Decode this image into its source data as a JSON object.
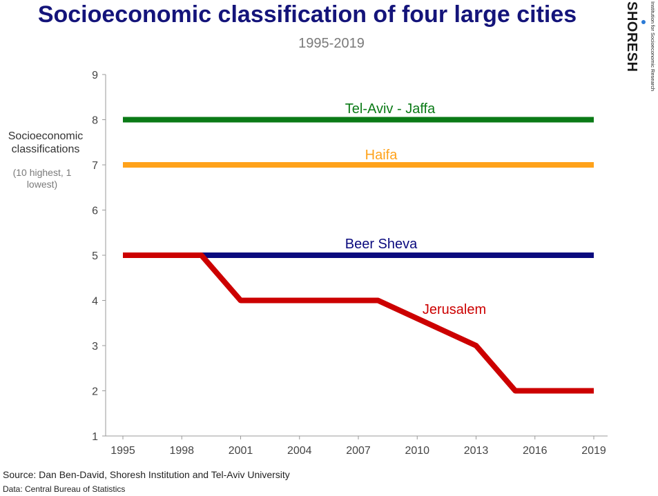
{
  "chart_data": {
    "type": "line",
    "title": "Socioeconomic classification of four large cities",
    "subtitle": "1995-2019",
    "ylabel": "Socioeconomic classifications",
    "ylabel_note": "(10 highest, 1 lowest)",
    "xlabel": "",
    "xlim": [
      1995,
      2019
    ],
    "ylim": [
      1,
      9
    ],
    "x_ticks": [
      1995,
      1998,
      2001,
      2004,
      2007,
      2010,
      2013,
      2016,
      2019
    ],
    "y_ticks": [
      1,
      2,
      3,
      4,
      5,
      6,
      7,
      8,
      9
    ],
    "grid": false,
    "legend": "none (direct labels)",
    "series": [
      {
        "name": "Tel-Aviv - Jaffa",
        "color": "#0a7a16",
        "x": [
          1995,
          2019
        ],
        "y": [
          8,
          8
        ]
      },
      {
        "name": "Haifa",
        "color": "#ffa21a",
        "x": [
          1995,
          2019
        ],
        "y": [
          7,
          7
        ]
      },
      {
        "name": "Beer Sheva",
        "color": "#0a0a7e",
        "x": [
          1995,
          2019
        ],
        "y": [
          5,
          5
        ]
      },
      {
        "name": "Jerusalem",
        "color": "#cc0000",
        "x": [
          1995,
          1999,
          2001,
          2008,
          2013,
          2015,
          2019
        ],
        "y": [
          5,
          5,
          4,
          4,
          3,
          2,
          2
        ]
      }
    ]
  },
  "logo": {
    "name": "SHORESH",
    "tagline": "Institution for Socioeconomic Research"
  },
  "footer": {
    "source": "Source: Dan Ben-David, Shoresh Institution and Tel-Aviv University",
    "data": "Data: Central Bureau of Statistics"
  }
}
